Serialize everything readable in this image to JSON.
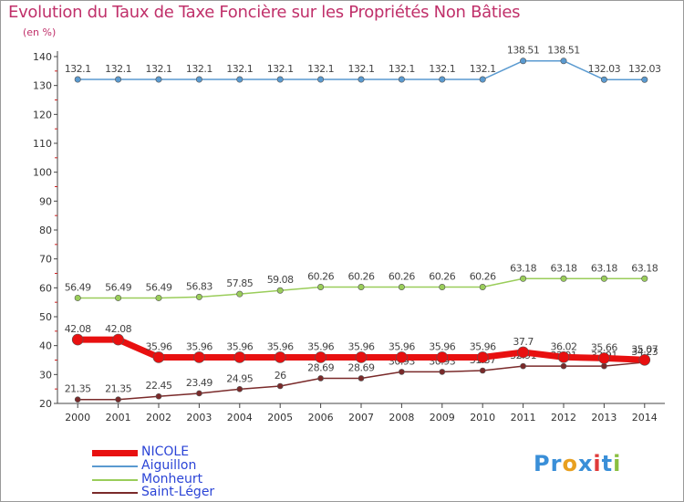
{
  "title": "Evolution du Taux de Taxe Foncière sur les Propriétés Non Bâties",
  "unit_label": "(en %)",
  "logo": {
    "letters": [
      "P",
      "r",
      "o",
      "x",
      "i",
      "t",
      "i"
    ],
    "colors": [
      "#3a8fd8",
      "#3a8fd8",
      "#e8a020",
      "#3a8fd8",
      "#e03a3a",
      "#3a8fd8",
      "#8ac040"
    ]
  },
  "chart_data": {
    "type": "line",
    "title": "Evolution du Taux de Taxe Foncière sur les Propriétés Non Bâties",
    "ylabel": "(en %)",
    "xlabel": "",
    "ylim": [
      20,
      140
    ],
    "yticks": [
      20,
      30,
      40,
      50,
      60,
      70,
      80,
      90,
      100,
      110,
      120,
      130,
      140
    ],
    "x": [
      "2000",
      "2001",
      "2002",
      "2003",
      "2004",
      "2005",
      "2006",
      "2007",
      "2008",
      "2009",
      "2010",
      "2011",
      "2012",
      "2013",
      "2014"
    ],
    "series": [
      {
        "name": "Aiguillon",
        "color": "#5a9ad0",
        "values": [
          132.1,
          132.1,
          132.1,
          132.1,
          132.1,
          132.1,
          132.1,
          132.1,
          132.1,
          132.1,
          132.1,
          138.51,
          138.51,
          132.03,
          132.03
        ],
        "labels": [
          "132.1",
          "132.1",
          "132.1",
          "132.1",
          "132.1",
          "132.1",
          "132.1",
          "132.1",
          "132.1",
          "132.1",
          "132.1",
          "138.51",
          "138.51",
          "132.03",
          "132.03"
        ]
      },
      {
        "name": "Monheurt",
        "color": "#9acd5a",
        "values": [
          56.49,
          56.49,
          56.49,
          56.83,
          57.85,
          59.08,
          60.26,
          60.26,
          60.26,
          60.26,
          60.26,
          63.18,
          63.18,
          63.18,
          63.18
        ],
        "labels": [
          "56.49",
          "56.49",
          "56.49",
          "56.83",
          "57.85",
          "59.08",
          "60.26",
          "60.26",
          "60.26",
          "60.26",
          "60.26",
          "63.18",
          "63.18",
          "63.18",
          "63.18"
        ]
      },
      {
        "name": "Saint-Léger",
        "color": "#7a2a2a",
        "values": [
          21.35,
          21.35,
          22.45,
          23.49,
          24.95,
          26,
          28.69,
          28.69,
          30.93,
          30.93,
          31.37,
          32.91,
          32.91,
          32.91,
          34.23
        ],
        "labels": [
          "21.35",
          "21.35",
          "22.45",
          "23.49",
          "24.95",
          "26",
          "28.69",
          "28.69",
          "30.93",
          "30.93",
          "31.37",
          "32.91",
          "32.91",
          "32.91",
          "34.23"
        ]
      },
      {
        "name": "NICOLE",
        "color": "#e81010",
        "values": [
          42.08,
          42.08,
          35.96,
          35.96,
          35.96,
          35.96,
          35.96,
          35.96,
          35.96,
          35.96,
          35.96,
          37.7,
          36.02,
          35.66,
          35.07
        ],
        "labels": [
          "42.08",
          "42.08",
          "35.96",
          "35.96",
          "35.96",
          "35.96",
          "35.96",
          "35.96",
          "35.96",
          "35.96",
          "35.96",
          "37.7",
          "36.02",
          "35.66",
          "35.07"
        ]
      }
    ],
    "legend_order": [
      "NICOLE",
      "Aiguillon",
      "Monheurt",
      "Saint-Léger"
    ],
    "legend_position": "bottom-left",
    "grid": false
  }
}
